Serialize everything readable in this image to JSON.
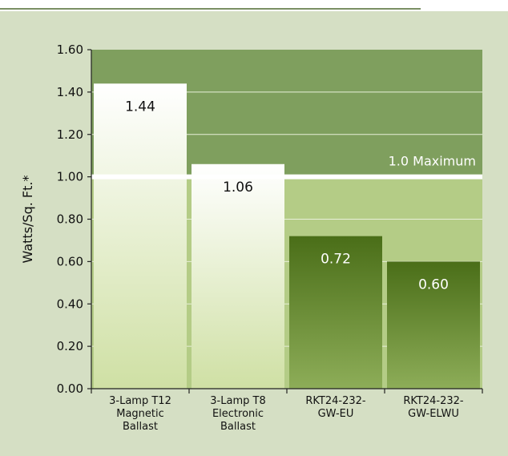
{
  "chart_data": {
    "type": "bar",
    "title": "",
    "xlabel": "",
    "ylabel": "Watts/Sq. Ft.*",
    "ylim": [
      0,
      1.6
    ],
    "yticks": [
      "0.00",
      "0.20",
      "0.40",
      "0.60",
      "0.80",
      "1.00",
      "1.20",
      "1.40",
      "1.60"
    ],
    "categories": [
      [
        "3-Lamp T12",
        "Magnetic",
        "Ballast"
      ],
      [
        "3-Lamp T8",
        "Electronic",
        "Ballast"
      ],
      [
        "RKT24-232-",
        "GW-EU"
      ],
      [
        "RKT24-232-",
        "GW-ELWU"
      ]
    ],
    "values": [
      1.44,
      1.06,
      0.72,
      0.6
    ],
    "data_labels": [
      "1.44",
      "1.06",
      "0.72",
      "0.60"
    ],
    "bar_styles": [
      "light",
      "light",
      "dark",
      "dark"
    ],
    "threshold": {
      "value": 1.0,
      "label": "1.0 Maximum"
    },
    "grid": true,
    "colors": {
      "panel_bg": "#d5dfc4",
      "band_above": "#7f9f5e",
      "band_below": "#b4cc86",
      "bar_light_top": "#ffffff",
      "bar_light_bottom": "#cfe0a4",
      "bar_dark_top": "#4a6e18",
      "bar_dark_bottom": "#8dad58"
    }
  }
}
